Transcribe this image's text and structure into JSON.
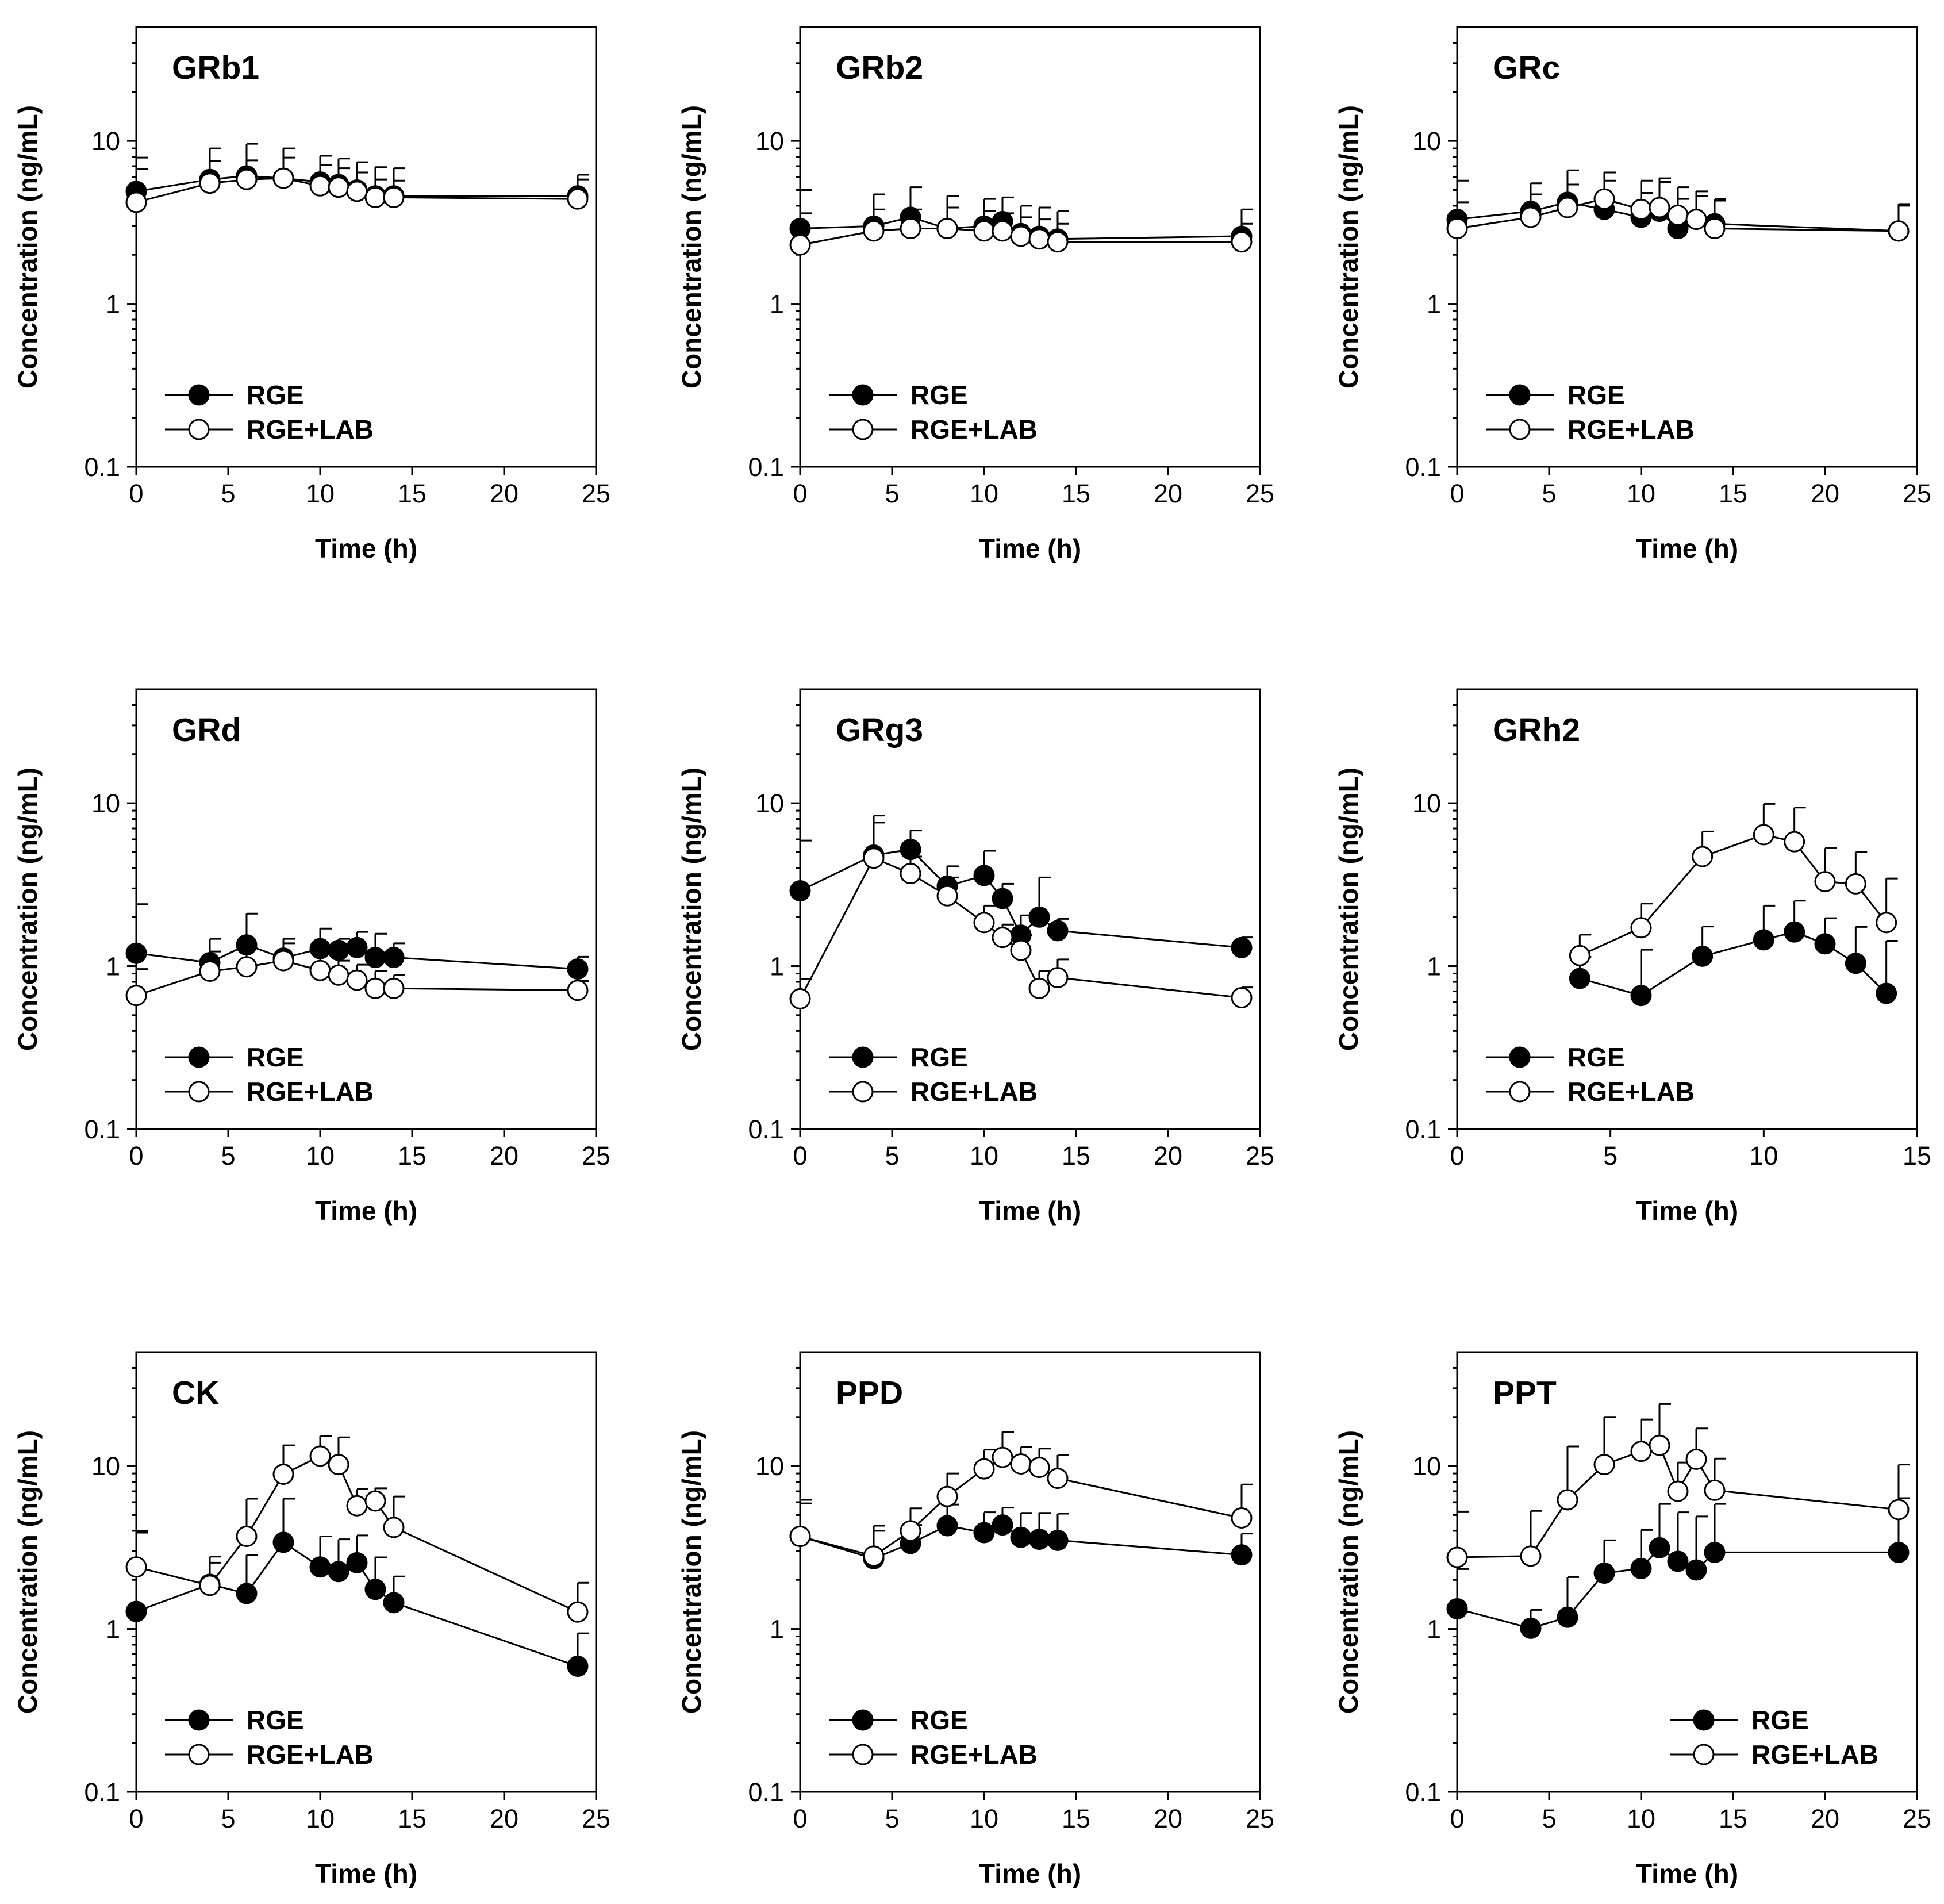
{
  "chart_data": [
    {
      "type": "line",
      "title": "GRb1",
      "xlabel": "Time (h)",
      "ylabel": "Concentration (ng/mL)",
      "xlim": [
        0,
        25
      ],
      "xticks": [
        0,
        5,
        10,
        15,
        20,
        25
      ],
      "yscale": "log",
      "ylim": [
        0.1,
        50
      ],
      "yticks": [
        0.1,
        1,
        10
      ],
      "legend_position": "lower-left",
      "series": [
        {
          "name": "RGE",
          "marker": "filled-circle",
          "x": [
            0,
            4,
            6,
            8,
            10,
            11,
            12,
            13,
            14,
            24
          ],
          "y": [
            4.9,
            5.8,
            6.1,
            5.9,
            5.6,
            5.4,
            5.0,
            4.6,
            4.6,
            4.6
          ],
          "err": [
            3.0,
            3.2,
            3.5,
            3.1,
            2.5,
            2.4,
            2.4,
            2.3,
            2.2,
            1.6
          ]
        },
        {
          "name": "RGE+LAB",
          "marker": "open-circle",
          "x": [
            0,
            4,
            6,
            8,
            10,
            11,
            12,
            13,
            14,
            24
          ],
          "y": [
            4.2,
            5.5,
            5.8,
            5.9,
            5.3,
            5.2,
            4.9,
            4.5,
            4.5,
            4.4
          ],
          "err": [
            2.5,
            2.0,
            1.8,
            2.0,
            1.8,
            1.6,
            1.5,
            1.3,
            1.2,
            1.4
          ]
        }
      ]
    },
    {
      "type": "line",
      "title": "GRb2",
      "xlabel": "Time (h)",
      "ylabel": "Concentration (ng/mL)",
      "xlim": [
        0,
        25
      ],
      "xticks": [
        0,
        5,
        10,
        15,
        20,
        25
      ],
      "yscale": "log",
      "ylim": [
        0.1,
        50
      ],
      "yticks": [
        0.1,
        1,
        10
      ],
      "legend_position": "lower-left",
      "series": [
        {
          "name": "RGE",
          "marker": "filled-circle",
          "x": [
            0,
            4,
            6,
            8,
            10,
            11,
            12,
            13,
            14,
            24
          ],
          "y": [
            2.9,
            3.0,
            3.4,
            2.9,
            3.0,
            3.2,
            2.7,
            2.6,
            2.5,
            2.6
          ],
          "err": [
            2.1,
            1.7,
            1.8,
            1.7,
            1.4,
            1.3,
            1.3,
            1.3,
            1.2,
            1.2
          ]
        },
        {
          "name": "RGE+LAB",
          "marker": "open-circle",
          "x": [
            0,
            4,
            6,
            8,
            10,
            11,
            12,
            13,
            14,
            24
          ],
          "y": [
            2.3,
            2.8,
            2.9,
            2.9,
            2.8,
            2.8,
            2.6,
            2.5,
            2.4,
            2.4
          ],
          "err": [
            1.3,
            1.0,
            0.9,
            1.0,
            0.9,
            0.8,
            0.8,
            0.8,
            0.7,
            0.7
          ]
        }
      ]
    },
    {
      "type": "line",
      "title": "GRc",
      "xlabel": "Time (h)",
      "ylabel": "Concentration (ng/mL)",
      "xlim": [
        0,
        25
      ],
      "xticks": [
        0,
        5,
        10,
        15,
        20,
        25
      ],
      "yscale": "log",
      "ylim": [
        0.1,
        50
      ],
      "yticks": [
        0.1,
        1,
        10
      ],
      "legend_position": "lower-left",
      "series": [
        {
          "name": "RGE",
          "marker": "filled-circle",
          "x": [
            0,
            4,
            6,
            8,
            10,
            11,
            12,
            13,
            14,
            24
          ],
          "y": [
            3.3,
            3.7,
            4.2,
            3.8,
            3.4,
            3.7,
            2.9,
            3.3,
            3.1,
            2.8
          ],
          "err": [
            2.4,
            1.8,
            2.4,
            1.9,
            1.4,
            1.9,
            1.5,
            1.3,
            1.3,
            1.2
          ]
        },
        {
          "name": "RGE+LAB",
          "marker": "open-circle",
          "x": [
            0,
            4,
            6,
            8,
            10,
            11,
            12,
            13,
            14,
            24
          ],
          "y": [
            2.9,
            3.4,
            3.9,
            4.4,
            3.8,
            3.9,
            3.5,
            3.3,
            2.9,
            2.8
          ],
          "err": [
            1.3,
            1.3,
            1.5,
            2.0,
            1.9,
            2.0,
            1.7,
            1.6,
            1.4,
            1.3
          ]
        }
      ]
    },
    {
      "type": "line",
      "title": "GRd",
      "xlabel": "Time (h)",
      "ylabel": "Concentration (ng/mL)",
      "xlim": [
        0,
        25
      ],
      "xticks": [
        0,
        5,
        10,
        15,
        20,
        25
      ],
      "yscale": "log",
      "ylim": [
        0.1,
        50
      ],
      "yticks": [
        0.1,
        1,
        10
      ],
      "legend_position": "lower-left",
      "series": [
        {
          "name": "RGE",
          "marker": "filled-circle",
          "x": [
            0,
            4,
            6,
            8,
            10,
            11,
            12,
            13,
            14,
            24
          ],
          "y": [
            1.2,
            1.05,
            1.35,
            1.12,
            1.28,
            1.25,
            1.3,
            1.13,
            1.13,
            0.96
          ],
          "err": [
            1.2,
            0.42,
            0.75,
            0.35,
            0.42,
            0.22,
            0.32,
            0.45,
            0.25,
            0.18
          ]
        },
        {
          "name": "RGE+LAB",
          "marker": "open-circle",
          "x": [
            0,
            4,
            6,
            8,
            10,
            11,
            12,
            13,
            14,
            24
          ],
          "y": [
            0.66,
            0.93,
            0.99,
            1.08,
            0.94,
            0.88,
            0.82,
            0.73,
            0.73,
            0.71
          ],
          "err": [
            0.3,
            0.3,
            0.3,
            0.3,
            0.3,
            0.2,
            0.2,
            0.2,
            0.15,
            0.1
          ]
        }
      ]
    },
    {
      "type": "line",
      "title": "GRg3",
      "xlabel": "Time (h)",
      "ylabel": "Concentration (ng/mL)",
      "xlim": [
        0,
        25
      ],
      "xticks": [
        0,
        5,
        10,
        15,
        20,
        25
      ],
      "yscale": "log",
      "ylim": [
        0.1,
        50
      ],
      "yticks": [
        0.1,
        1,
        10
      ],
      "legend_position": "lower-left",
      "series": [
        {
          "name": "RGE",
          "marker": "filled-circle",
          "x": [
            0,
            4,
            6,
            8,
            10,
            11,
            12,
            13,
            14,
            24
          ],
          "y": [
            2.9,
            4.8,
            5.2,
            3.1,
            3.6,
            2.6,
            1.55,
            2.0,
            1.65,
            1.3
          ],
          "err": [
            3.0,
            3.6,
            1.6,
            1.0,
            1.5,
            0.6,
            0.5,
            1.5,
            0.3,
            0.2
          ]
        },
        {
          "name": "RGE+LAB",
          "marker": "open-circle",
          "x": [
            0,
            4,
            6,
            8,
            10,
            11,
            12,
            13,
            14,
            24
          ],
          "y": [
            0.63,
            4.6,
            3.7,
            2.7,
            1.85,
            1.5,
            1.25,
            0.73,
            0.85,
            0.64
          ],
          "err": [
            0.2,
            3.0,
            1.0,
            0.8,
            0.5,
            0.3,
            0.3,
            0.2,
            0.25,
            0.1
          ]
        }
      ]
    },
    {
      "type": "line",
      "title": "GRh2",
      "xlabel": "Time (h)",
      "ylabel": "Concentration (ng/mL)",
      "xlim": [
        0,
        15
      ],
      "xticks": [
        0,
        5,
        10,
        15
      ],
      "yscale": "log",
      "ylim": [
        0.1,
        50
      ],
      "yticks": [
        0.1,
        1,
        10
      ],
      "legend_position": "lower-left",
      "series": [
        {
          "name": "RGE",
          "marker": "filled-circle",
          "x": [
            4,
            6,
            8,
            10,
            11,
            12,
            13,
            14
          ],
          "y": [
            0.84,
            0.66,
            1.15,
            1.45,
            1.62,
            1.37,
            1.04,
            0.68
          ],
          "err": [
            0.3,
            0.6,
            0.6,
            0.9,
            0.9,
            0.6,
            0.7,
            0.75
          ]
        },
        {
          "name": "RGE+LAB",
          "marker": "open-circle",
          "x": [
            4,
            6,
            8,
            10,
            11,
            12,
            13,
            14
          ],
          "y": [
            1.16,
            1.72,
            4.7,
            6.4,
            5.8,
            3.3,
            3.2,
            1.85
          ],
          "err": [
            0.4,
            0.7,
            2.0,
            3.5,
            3.6,
            2.0,
            1.8,
            1.6
          ]
        }
      ]
    },
    {
      "type": "line",
      "title": "CK",
      "xlabel": "Time (h)",
      "ylabel": "Concentration (ng/mL)",
      "xlim": [
        0,
        25
      ],
      "xticks": [
        0,
        5,
        10,
        15,
        20,
        25
      ],
      "yscale": "log",
      "ylim": [
        0.1,
        50
      ],
      "yticks": [
        0.1,
        1,
        10
      ],
      "legend_position": "lower-left",
      "series": [
        {
          "name": "RGE",
          "marker": "filled-circle",
          "x": [
            0,
            4,
            6,
            8,
            10,
            11,
            12,
            13,
            14,
            24
          ],
          "y": [
            1.28,
            1.88,
            1.65,
            3.4,
            2.4,
            2.25,
            2.55,
            1.75,
            1.45,
            0.59
          ],
          "err": [
            2.7,
            0.9,
            1.2,
            2.9,
            1.3,
            1.3,
            1.2,
            1.0,
            0.65,
            0.35
          ]
        },
        {
          "name": "RGE+LAB",
          "marker": "open-circle",
          "x": [
            0,
            4,
            6,
            8,
            10,
            11,
            12,
            13,
            14,
            24
          ],
          "y": [
            2.4,
            1.85,
            3.7,
            8.9,
            11.5,
            10.2,
            5.7,
            6.1,
            4.2,
            1.27
          ],
          "err": [
            1.5,
            0.7,
            2.6,
            4.5,
            3.8,
            4.8,
            1.5,
            1.2,
            2.3,
            0.65
          ]
        }
      ]
    },
    {
      "type": "line",
      "title": "PPD",
      "xlabel": "Time (h)",
      "ylabel": "Concentration (ng/mL)",
      "xlim": [
        0,
        25
      ],
      "xticks": [
        0,
        5,
        10,
        15,
        20,
        25
      ],
      "yscale": "log",
      "ylim": [
        0.1,
        50
      ],
      "yticks": [
        0.1,
        1,
        10
      ],
      "legend_position": "lower-left",
      "series": [
        {
          "name": "RGE",
          "marker": "filled-circle",
          "x": [
            0,
            4,
            6,
            8,
            10,
            11,
            12,
            13,
            14,
            24
          ],
          "y": [
            3.7,
            2.7,
            3.35,
            4.3,
            3.9,
            4.35,
            3.65,
            3.55,
            3.5,
            2.85
          ],
          "err": [
            2.2,
            1.3,
            1.0,
            1.5,
            1.3,
            1.2,
            1.5,
            1.6,
            1.6,
            1.0
          ]
        },
        {
          "name": "RGE+LAB",
          "marker": "open-circle",
          "x": [
            0,
            4,
            6,
            8,
            10,
            11,
            12,
            13,
            14,
            24
          ],
          "y": [
            3.7,
            2.8,
            4.0,
            6.5,
            9.6,
            11.3,
            10.3,
            9.8,
            8.4,
            4.8
          ],
          "err": [
            2.5,
            1.5,
            1.5,
            2.5,
            3.0,
            4.9,
            2.8,
            3.0,
            3.3,
            2.9
          ]
        }
      ]
    },
    {
      "type": "line",
      "title": "PPT",
      "xlabel": "Time (h)",
      "ylabel": "Concentration (ng/mL)",
      "xlim": [
        0,
        25
      ],
      "xticks": [
        0,
        5,
        10,
        15,
        20,
        25
      ],
      "yscale": "log",
      "ylim": [
        0.1,
        50
      ],
      "yticks": [
        0.1,
        1,
        10
      ],
      "legend_position": "lower-right",
      "series": [
        {
          "name": "RGE",
          "marker": "filled-circle",
          "x": [
            0,
            4,
            6,
            8,
            10,
            11,
            12,
            13,
            14,
            24
          ],
          "y": [
            1.33,
            1.01,
            1.18,
            2.2,
            2.35,
            3.15,
            2.6,
            2.3,
            2.95,
            2.95
          ],
          "err": [
            1.0,
            0.3,
            0.9,
            1.3,
            1.7,
            2.7,
            2.6,
            2.6,
            2.9,
            3.4
          ]
        },
        {
          "name": "RGE+LAB",
          "marker": "open-circle",
          "x": [
            0,
            4,
            6,
            8,
            10,
            11,
            12,
            13,
            14,
            24
          ],
          "y": [
            2.75,
            2.8,
            6.2,
            10.2,
            12.3,
            13.4,
            7.0,
            11.0,
            7.1,
            5.4
          ],
          "err": [
            2.5,
            2.5,
            7.0,
            9.8,
            7.0,
            10.6,
            3.5,
            6.0,
            4.0,
            4.8
          ]
        }
      ]
    }
  ]
}
